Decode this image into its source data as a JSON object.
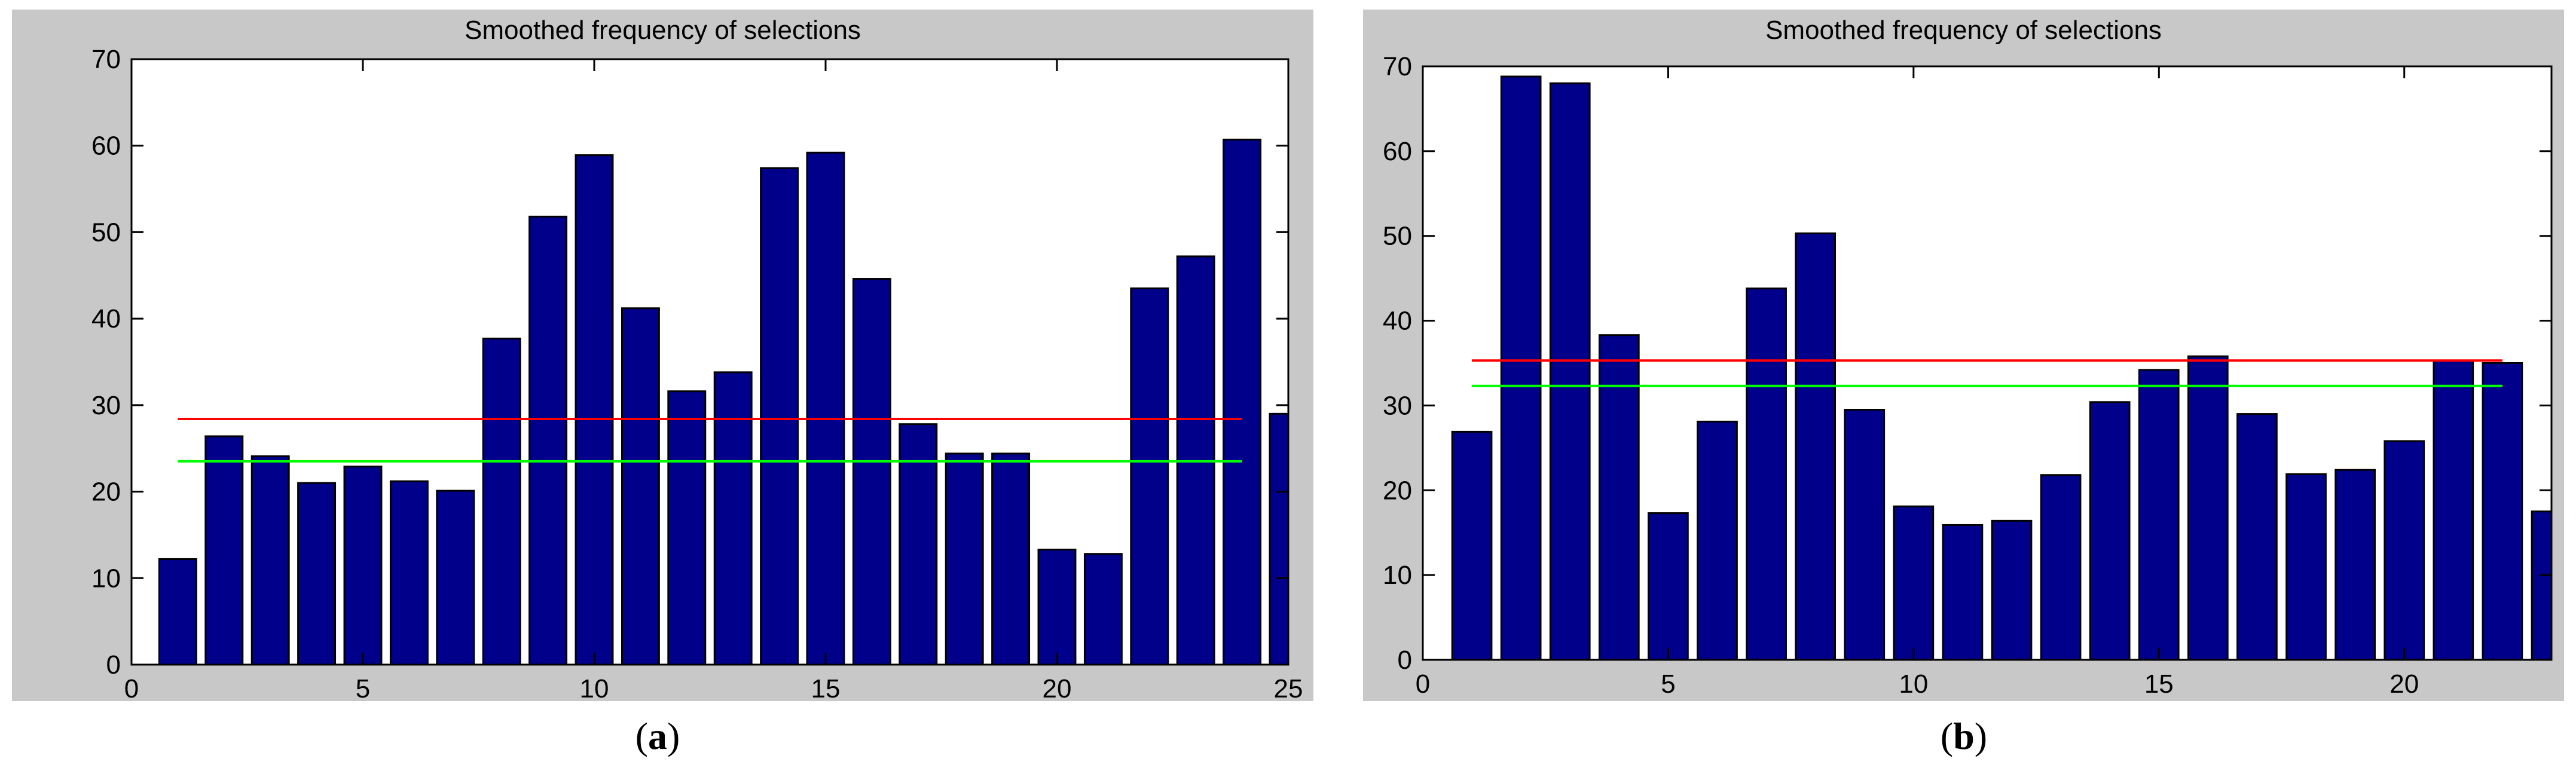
{
  "chart_data": [
    {
      "type": "bar",
      "title": "Smoothed frequency of selections",
      "panel_label": "a",
      "x": [
        1,
        2,
        3,
        4,
        5,
        6,
        7,
        8,
        9,
        10,
        11,
        12,
        13,
        14,
        15,
        16,
        17,
        18,
        19,
        20,
        21,
        22,
        23,
        24,
        25
      ],
      "values": [
        12.2,
        26.4,
        24.1,
        21.0,
        22.9,
        21.2,
        20.1,
        37.7,
        51.8,
        58.9,
        41.2,
        31.6,
        33.8,
        57.4,
        59.2,
        44.6,
        27.8,
        24.4,
        24.4,
        13.3,
        12.8,
        43.5,
        47.2,
        60.7,
        29.0
      ],
      "xlim": [
        0,
        25
      ],
      "ylim": [
        0,
        70
      ],
      "xticks": [
        0,
        5,
        10,
        15,
        20,
        25
      ],
      "yticks": [
        0,
        10,
        20,
        30,
        40,
        50,
        60,
        70
      ],
      "reference_lines": [
        {
          "color": "#ff0000",
          "y": 28.4,
          "x_range": [
            1,
            24
          ]
        },
        {
          "color": "#00ff00",
          "y": 23.5,
          "x_range": [
            1,
            24
          ]
        }
      ],
      "bar_color": "#00008b",
      "xlabel": "",
      "ylabel": ""
    },
    {
      "type": "bar",
      "title": "Smoothed frequency of selections",
      "panel_label": "b",
      "x": [
        1,
        2,
        3,
        4,
        5,
        6,
        7,
        8,
        9,
        10,
        11,
        12,
        13,
        14,
        15,
        16,
        17,
        18,
        19,
        20,
        21,
        22,
        23
      ],
      "values": [
        26.9,
        68.8,
        68.0,
        38.3,
        17.3,
        28.1,
        43.8,
        50.3,
        29.5,
        18.1,
        15.9,
        16.4,
        21.8,
        30.4,
        34.2,
        35.8,
        29.0,
        21.9,
        22.4,
        25.8,
        35.3,
        35.0,
        17.5
      ],
      "xlim": [
        0,
        23
      ],
      "ylim": [
        0,
        70
      ],
      "xticks": [
        0,
        5,
        10,
        15,
        20
      ],
      "yticks": [
        0,
        10,
        20,
        30,
        40,
        50,
        60,
        70
      ],
      "reference_lines": [
        {
          "color": "#ff0000",
          "y": 35.3,
          "x_range": [
            1,
            22
          ]
        },
        {
          "color": "#00ff00",
          "y": 32.3,
          "x_range": [
            1,
            22
          ]
        }
      ],
      "bar_color": "#00008b",
      "xlabel": "",
      "ylabel": ""
    }
  ]
}
